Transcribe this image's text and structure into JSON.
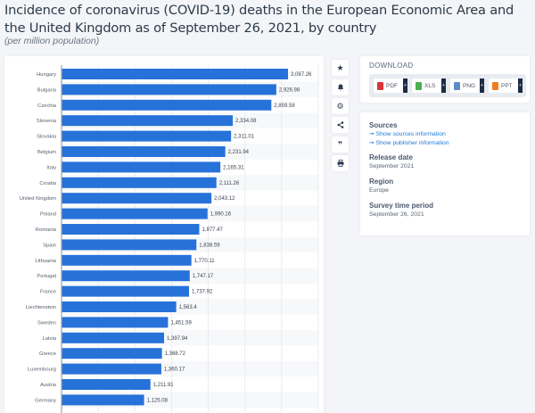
{
  "header": {
    "title": "Incidence of coronavirus (COVID-19) deaths in the European Economic Area and the United Kingdom as of September 26, 2021, by country",
    "subtitle": "(per million population)"
  },
  "side_tools": [
    {
      "icon": "star-icon",
      "glyph": "★"
    },
    {
      "icon": "bell-icon",
      "glyph": "🔔"
    },
    {
      "icon": "gear-icon",
      "glyph": "⚙"
    },
    {
      "icon": "share-icon",
      "glyph": "<"
    },
    {
      "icon": "quote-icon",
      "glyph": "99"
    },
    {
      "icon": "print-icon",
      "glyph": "⎙"
    }
  ],
  "download": {
    "title": "DOWNLOAD",
    "buttons": [
      {
        "label": "PDF",
        "color": "#d9343a"
      },
      {
        "label": "XLS",
        "color": "#4caf50"
      },
      {
        "label": "PNG",
        "color": "#5b8bc9"
      },
      {
        "label": "PPT",
        "color": "#ef7d22"
      }
    ],
    "plus": "+"
  },
  "info": {
    "sources_label": "Sources",
    "sources_link": "Show sources information",
    "publisher_link": "Show publisher information",
    "release_label": "Release date",
    "release_value": "September 2021",
    "region_label": "Region",
    "region_value": "Europe",
    "period_label": "Survey time period",
    "period_value": "September 26, 2021"
  },
  "chart_data": {
    "type": "bar",
    "orientation": "horizontal",
    "title": "Incidence of coronavirus (COVID-19) deaths in the European Economic Area and the United Kingdom as of September 26, 2021, by country",
    "subtitle": "(per million population)",
    "xlabel": "",
    "ylabel": "",
    "xlim": [
      0,
      3500
    ],
    "grid": true,
    "bar_color": "#2672d9",
    "categories": [
      "Hungary",
      "Bulgaria",
      "Czechia",
      "Slovenia",
      "Slovakia",
      "Belgium",
      "Italy",
      "Croatia",
      "United Kingdom",
      "Poland",
      "Romania",
      "Spain",
      "Lithuania",
      "Portugal",
      "France",
      "Liechtenstein",
      "Sweden",
      "Latvia",
      "Greece",
      "Luxembourg",
      "Austria",
      "Germany"
    ],
    "values": [
      3087.26,
      2926.98,
      2859.58,
      2334.08,
      2311.01,
      2231.94,
      2165.31,
      2111.26,
      2043.12,
      1990.16,
      1877.47,
      1838.59,
      1770.11,
      1747.17,
      1737.92,
      1563.4,
      1451.59,
      1397.94,
      1368.72,
      1360.17,
      1211.91,
      1125.08
    ],
    "labels": [
      "3,087.26",
      "2,926.98",
      "2,859.58",
      "2,334.08",
      "2,311.01",
      "2,231.94",
      "2,165.31",
      "2,111.26",
      "2,043.12",
      "1,990.16",
      "1,877.47",
      "1,838.59",
      "1,770.11",
      "1,747.17",
      "1,737.92",
      "1,563.4",
      "1,451.59",
      "1,397.94",
      "1,368.72",
      "1,360.17",
      "1,211.91",
      "1,125.08"
    ]
  }
}
